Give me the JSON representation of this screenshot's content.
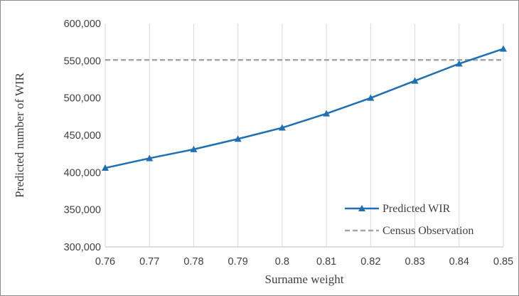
{
  "chart_data": {
    "type": "line",
    "xlabel": "Surname weight",
    "ylabel": "Predicted number of WIR",
    "x": [
      0.76,
      0.77,
      0.78,
      0.79,
      0.8,
      0.81,
      0.82,
      0.83,
      0.84,
      0.85
    ],
    "x_tick_labels": [
      "0.76",
      "0.77",
      "0.78",
      "0.79",
      "0.8",
      "0.81",
      "0.82",
      "0.83",
      "0.84",
      "0.85"
    ],
    "ylim": [
      300000,
      600000
    ],
    "y_ticks": [
      300000,
      350000,
      400000,
      450000,
      500000,
      550000,
      600000
    ],
    "y_tick_labels": [
      "300,000",
      "350,000",
      "400,000",
      "450,000",
      "500,000",
      "550,000",
      "600,000"
    ],
    "grid": {
      "vertical": true,
      "horizontal": false
    },
    "legend_position": "bottom-right",
    "series": [
      {
        "name": "Predicted WIR",
        "style": "solid-line-triangle-markers",
        "color": "#1f6fb2",
        "values": [
          406000,
          419000,
          431000,
          445000,
          460000,
          479000,
          500000,
          523000,
          546000,
          566000
        ]
      },
      {
        "name": "Census Observation",
        "style": "dashed-line",
        "color": "#a6a6a6",
        "values": [
          551000,
          551000,
          551000,
          551000,
          551000,
          551000,
          551000,
          551000,
          551000,
          551000
        ]
      }
    ]
  }
}
